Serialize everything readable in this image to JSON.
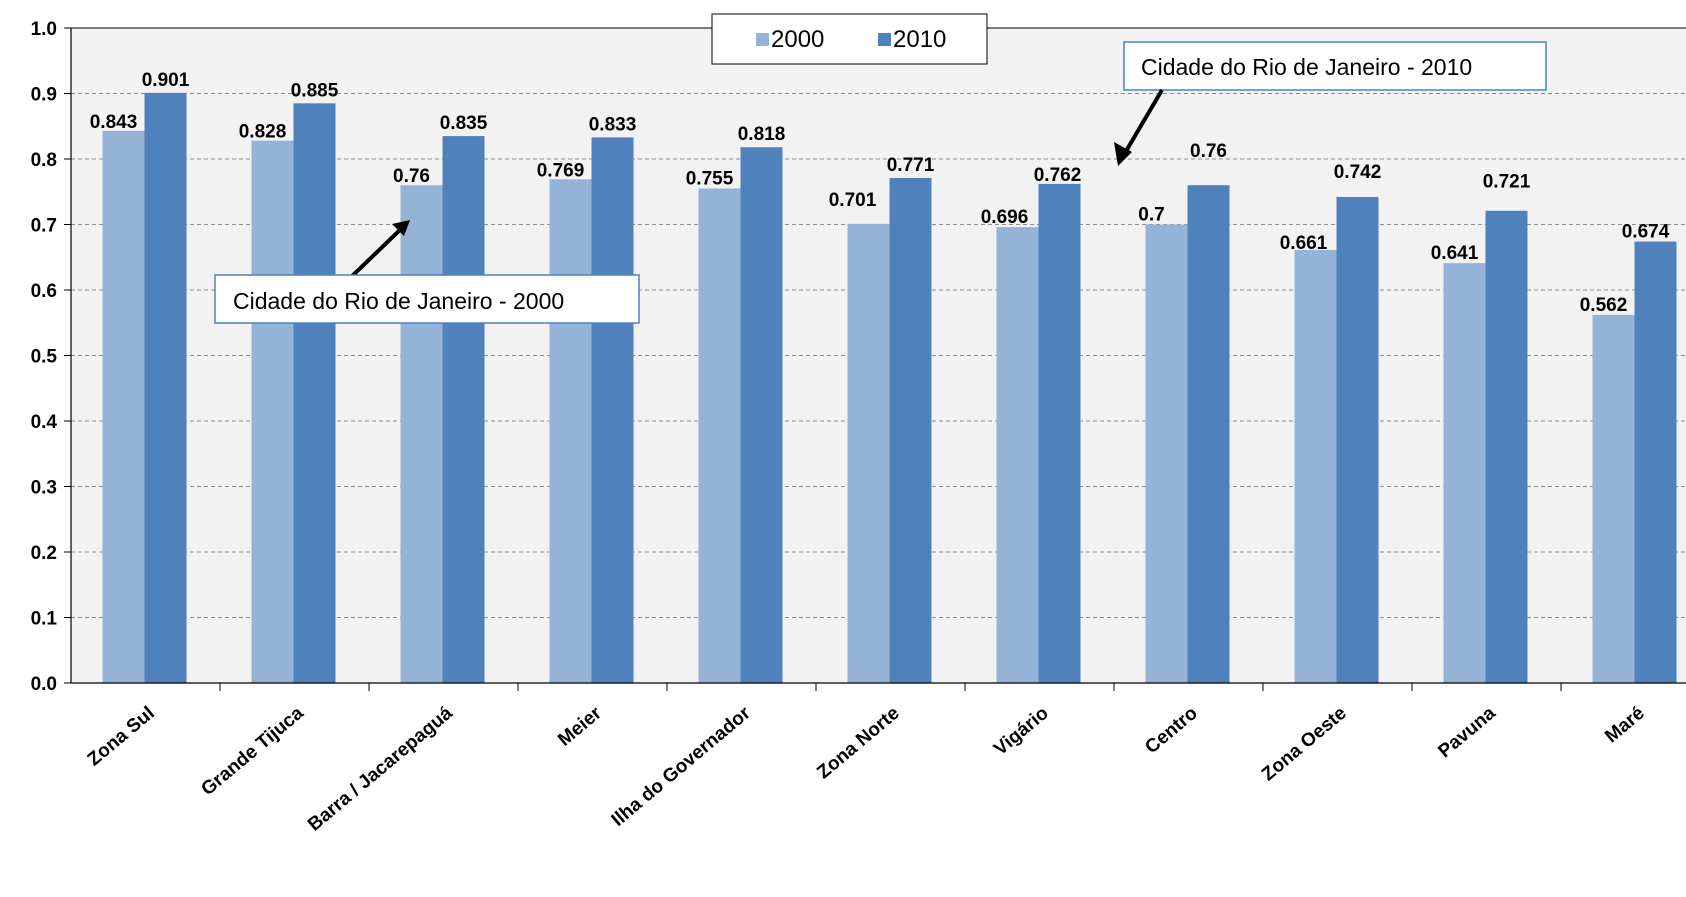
{
  "chart_data": {
    "type": "bar",
    "title": "",
    "xlabel": "",
    "ylabel": "",
    "ylim": [
      0,
      1.0
    ],
    "yticks": [
      "0.0",
      "0.1",
      "0.2",
      "0.3",
      "0.4",
      "0.5",
      "0.6",
      "0.7",
      "0.8",
      "0.9",
      "1.0"
    ],
    "grid": true,
    "legend_position": "top-center",
    "categories": [
      "Zona Sul",
      "Grande Tijuca",
      "Barra / Jacarepaguá",
      "Meier",
      "Ilha do Governador",
      "Zona Norte",
      "Vigário",
      "Centro",
      "Zona Oeste",
      "Pavuna",
      "Maré"
    ],
    "series": [
      {
        "name": "2000",
        "color": "#95b3d7",
        "values": [
          0.843,
          0.828,
          0.76,
          0.769,
          0.755,
          0.701,
          0.696,
          0.7,
          0.661,
          0.641,
          0.562
        ],
        "labels": [
          "0.843",
          "0.828",
          "0.76",
          "0.769",
          "0.755",
          "0.701",
          "0.696",
          "0.7",
          "0.661",
          "0.641",
          "0.562"
        ]
      },
      {
        "name": "2010",
        "color": "#4f81bd",
        "values": [
          0.901,
          0.885,
          0.835,
          0.833,
          0.818,
          0.771,
          0.762,
          0.76,
          0.742,
          0.721,
          0.674
        ],
        "labels": [
          "0.901",
          "0.885",
          "0.835",
          "0.833",
          "0.818",
          "0.771",
          "0.762",
          "0.76",
          "0.742",
          "0.721",
          "0.674"
        ]
      }
    ],
    "reference_lines": [
      {
        "label": "Cidade do Rio de Janeiro - 2010",
        "value": 0.799,
        "color": "#1f497d"
      },
      {
        "label": "Cidade do Rio de Janeiro - 2000",
        "value": 0.716,
        "color": "#c6d6ea"
      }
    ]
  }
}
